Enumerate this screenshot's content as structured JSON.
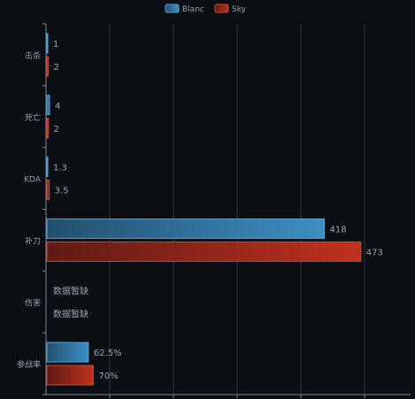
{
  "chart_data": {
    "type": "bar",
    "orientation": "horizontal",
    "categories": [
      "击杀",
      "死亡",
      "KDA",
      "补刀",
      "伤害",
      "参战率"
    ],
    "series": [
      {
        "name": "Blanc",
        "color": "#3d8fc5",
        "values": [
          1,
          4,
          1.3,
          418,
          null,
          62.5
        ],
        "labels": [
          "1",
          "4",
          "1.3",
          "418",
          "数据暂缺",
          "62.5%"
        ]
      },
      {
        "name": "Sky",
        "color": "#c0311f",
        "values": [
          2,
          2,
          3.5,
          473,
          null,
          70
        ],
        "labels": [
          "2",
          "2",
          "3.5",
          "473",
          "数据暂缺",
          "70%"
        ]
      }
    ],
    "legend_position": "top-center",
    "grid": true,
    "x_axis_labels_visible": false
  },
  "colors": {
    "background": "#0b0e13",
    "grid": "#2b313a",
    "axis": "#7e8794",
    "label": "#9aa3ae"
  }
}
